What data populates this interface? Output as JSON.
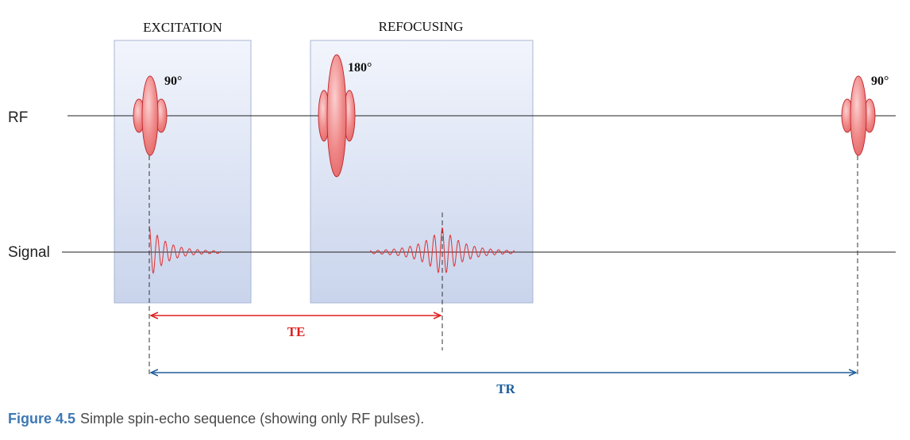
{
  "panels": {
    "excitation": "EXCITATION",
    "refocusing": "REFOCUSING"
  },
  "rows": {
    "rf": "RF",
    "signal": "Signal"
  },
  "pulses": {
    "first": "90°",
    "second": "180°",
    "third": "90°"
  },
  "intervals": {
    "te": "TE",
    "tr": "TR"
  },
  "caption": {
    "figure": "Figure 4.5",
    "text": "Simple spin-echo sequence (showing only RF pulses)."
  },
  "colors": {
    "pulse_fill": "#f08a8a",
    "pulse_stroke": "#c0282e",
    "signal": "#e03030",
    "te": "#e02020",
    "tr": "#1f5f9c",
    "panel_top": "#f2f5fc",
    "panel_bottom": "#c9d4ec",
    "caption_figure": "#3d78b5"
  }
}
